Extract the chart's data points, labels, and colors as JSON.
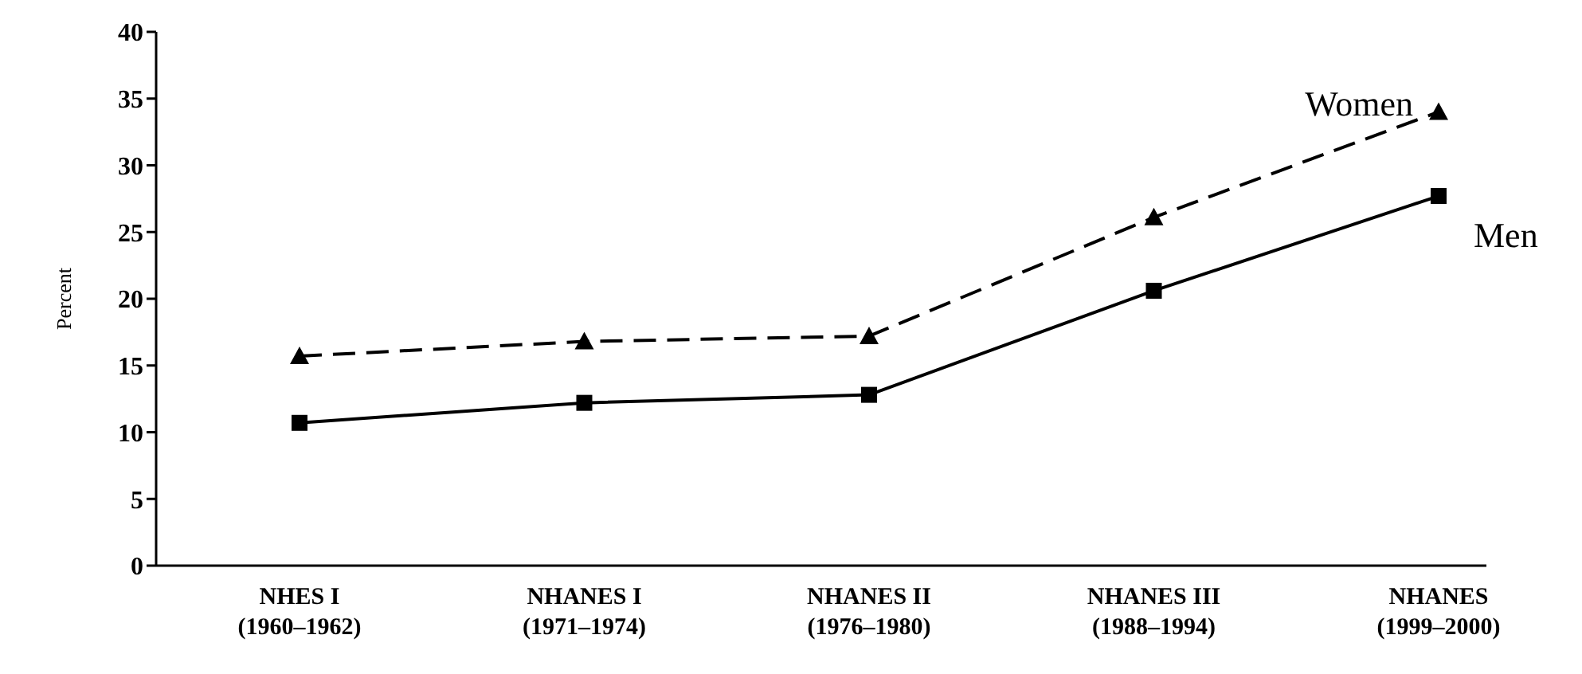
{
  "chart_data": {
    "type": "line",
    "ylabel": "Percent",
    "categories": [
      "NHES I\n(1960–1962)",
      "NHANES I\n(1971–1974)",
      "NHANES II\n(1976–1980)",
      "NHANES III\n(1988–1994)",
      "NHANES\n(1999–2000)"
    ],
    "series": [
      {
        "name": "Women",
        "color": "#000000",
        "marker": "triangle",
        "line_style": "dashed",
        "values": [
          15.7,
          16.8,
          17.2,
          26.1,
          34.0
        ]
      },
      {
        "name": "Men",
        "color": "#000000",
        "marker": "square",
        "line_style": "solid",
        "values": [
          10.7,
          12.2,
          12.8,
          20.6,
          27.7
        ]
      }
    ],
    "ylim": [
      0,
      40
    ],
    "yticks": [
      0,
      5,
      10,
      15,
      20,
      25,
      30,
      35,
      40
    ],
    "grid": false,
    "legend": false
  }
}
